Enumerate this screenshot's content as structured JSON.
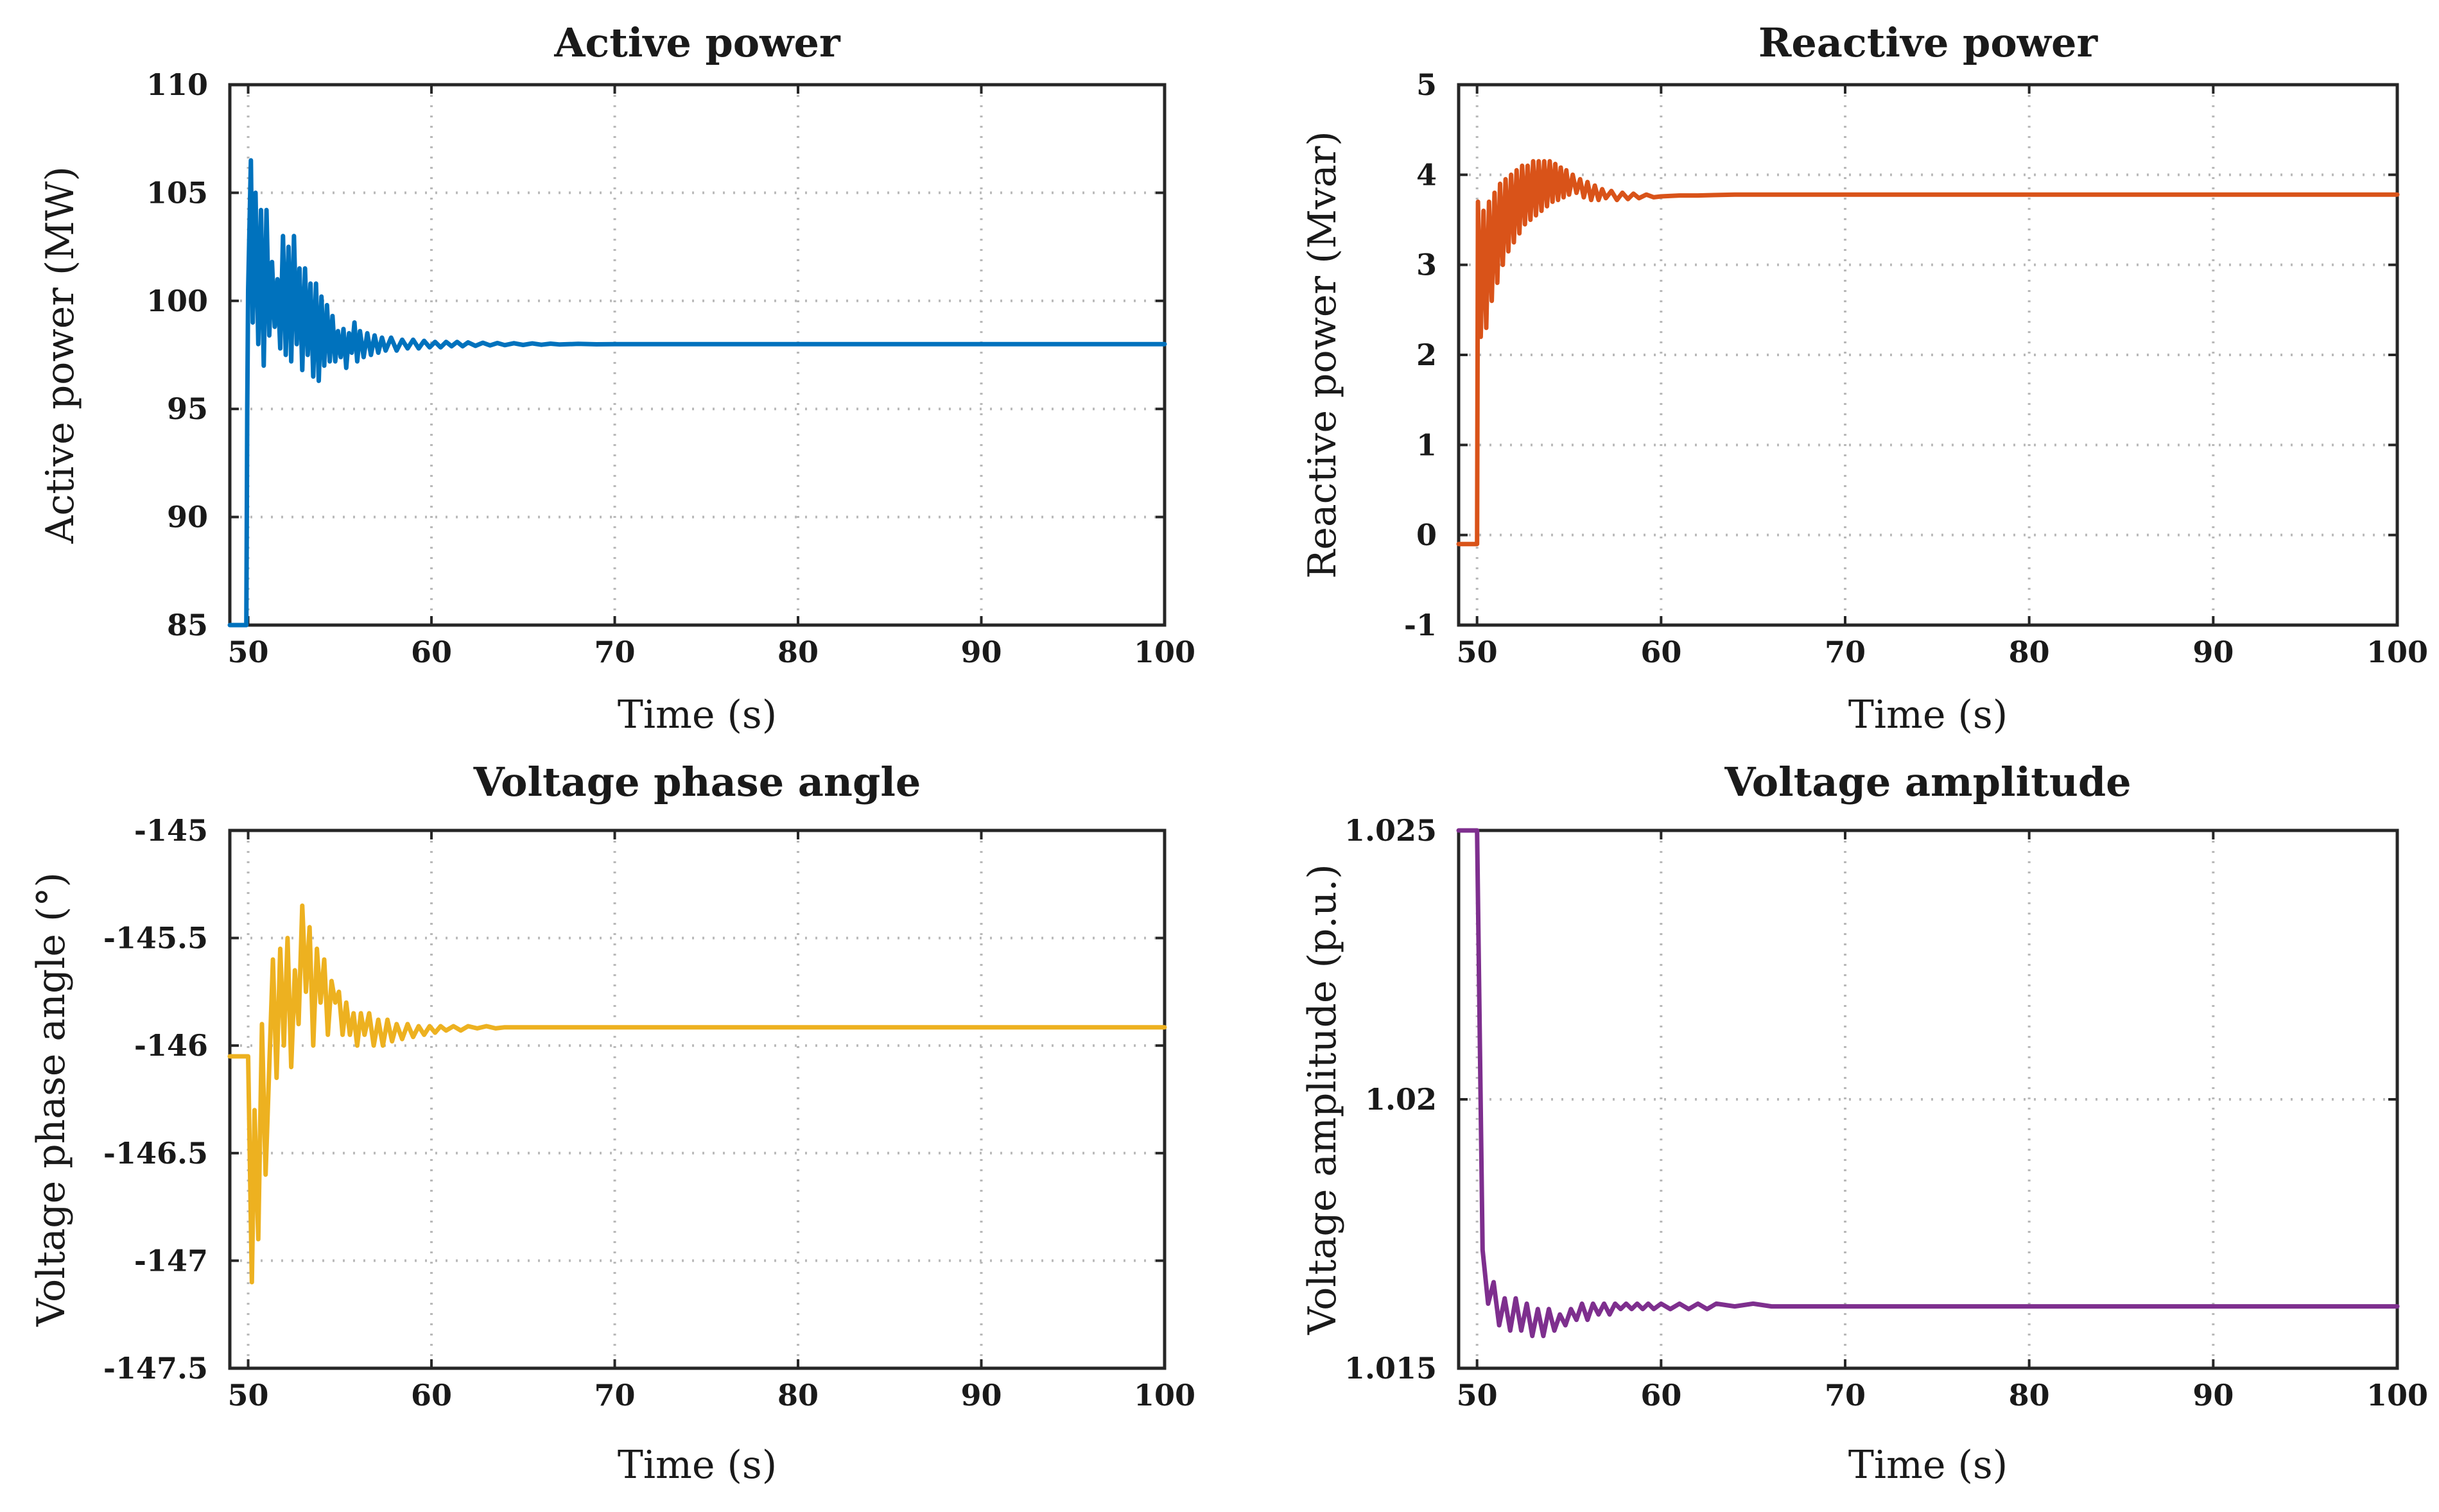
{
  "chart_data": [
    {
      "type": "line",
      "title": "Active power",
      "xlabel": "Time (s)",
      "ylabel": "Active power (MW)",
      "xlim": [
        49,
        100
      ],
      "ylim": [
        85,
        110
      ],
      "xticks": [
        50,
        60,
        70,
        80,
        90,
        100
      ],
      "yticks": [
        85,
        90,
        95,
        100,
        105,
        110
      ],
      "xtick_labels": [
        "50",
        "60",
        "70",
        "80",
        "90",
        "100"
      ],
      "ytick_labels": [
        "85",
        "90",
        "95",
        "100",
        "105",
        "110"
      ],
      "grid": true,
      "series": [
        {
          "name": "Active power",
          "color": "#0072BD",
          "x": [
            49,
            49.9,
            49.95,
            50.0,
            50.15,
            50.25,
            50.4,
            50.55,
            50.7,
            50.85,
            51.0,
            51.15,
            51.3,
            51.45,
            51.6,
            51.75,
            51.9,
            52.05,
            52.2,
            52.35,
            52.5,
            52.65,
            52.8,
            52.95,
            53.1,
            53.25,
            53.4,
            53.55,
            53.7,
            53.85,
            54.0,
            54.15,
            54.3,
            54.45,
            54.6,
            54.75,
            54.9,
            55.05,
            55.2,
            55.35,
            55.5,
            55.65,
            55.8,
            55.95,
            56.1,
            56.3,
            56.5,
            56.7,
            56.9,
            57.1,
            57.3,
            57.5,
            57.8,
            58.1,
            58.4,
            58.7,
            59.0,
            59.3,
            59.6,
            59.9,
            60.2,
            60.5,
            60.8,
            61.1,
            61.4,
            61.7,
            62.0,
            62.4,
            62.8,
            63.2,
            63.6,
            64.0,
            64.5,
            65.0,
            65.5,
            66.0,
            66.5,
            67.0,
            68.0,
            69.0,
            70.0,
            72.0,
            75.0,
            80.0,
            90.0,
            100.0
          ],
          "y": [
            85,
            85,
            95,
            100.5,
            106.5,
            99.0,
            105.0,
            98.0,
            104.2,
            97.0,
            104.2,
            98.4,
            101.8,
            98.8,
            101.0,
            97.8,
            103.0,
            97.5,
            102.5,
            97.2,
            103.0,
            98.0,
            101.5,
            96.8,
            101.5,
            97.5,
            100.8,
            96.5,
            100.8,
            96.3,
            100.2,
            97.0,
            99.8,
            97.2,
            99.3,
            97.2,
            98.6,
            97.4,
            98.7,
            96.9,
            98.5,
            97.6,
            99.0,
            97.2,
            98.6,
            97.4,
            98.5,
            97.5,
            98.4,
            97.6,
            98.3,
            97.7,
            98.3,
            97.7,
            98.2,
            97.8,
            98.2,
            97.8,
            98.15,
            97.85,
            98.1,
            97.85,
            98.1,
            97.9,
            98.1,
            97.9,
            98.08,
            97.92,
            98.06,
            97.94,
            98.05,
            97.95,
            98.04,
            97.96,
            98.03,
            97.97,
            98.02,
            97.98,
            98.01,
            97.99,
            98.0,
            98.0,
            98.0,
            98.0,
            98.0,
            98.0
          ]
        }
      ]
    },
    {
      "type": "line",
      "title": "Reactive power",
      "xlabel": "Time (s)",
      "ylabel": "Reactive power (Mvar)",
      "xlim": [
        49,
        100
      ],
      "ylim": [
        -1,
        5
      ],
      "xticks": [
        50,
        60,
        70,
        80,
        90,
        100
      ],
      "yticks": [
        -1,
        0,
        1,
        2,
        3,
        4,
        5
      ],
      "xtick_labels": [
        "50",
        "60",
        "70",
        "80",
        "90",
        "100"
      ],
      "ytick_labels": [
        "-1",
        "0",
        "1",
        "2",
        "3",
        "4",
        "5"
      ],
      "grid": true,
      "series": [
        {
          "name": "Reactive power",
          "color": "#D95319",
          "x": [
            49,
            49.9,
            50.0,
            50.05,
            50.2,
            50.35,
            50.5,
            50.65,
            50.8,
            50.95,
            51.1,
            51.25,
            51.4,
            51.55,
            51.7,
            51.85,
            52.0,
            52.15,
            52.3,
            52.45,
            52.6,
            52.75,
            52.9,
            53.05,
            53.2,
            53.35,
            53.5,
            53.65,
            53.8,
            53.95,
            54.1,
            54.25,
            54.4,
            54.55,
            54.7,
            54.85,
            55.0,
            55.2,
            55.4,
            55.6,
            55.8,
            56.0,
            56.2,
            56.4,
            56.6,
            56.8,
            57.0,
            57.3,
            57.6,
            57.9,
            58.2,
            58.5,
            58.8,
            59.2,
            59.6,
            60.0,
            61.0,
            62.0,
            64.0,
            66.0,
            70.0,
            80.0,
            90.0,
            100.0
          ],
          "y": [
            -0.1,
            -0.1,
            -0.1,
            3.7,
            2.2,
            3.6,
            2.3,
            3.7,
            2.6,
            3.8,
            2.8,
            3.9,
            3.0,
            3.95,
            3.15,
            4.0,
            3.25,
            4.05,
            3.35,
            4.1,
            3.45,
            4.1,
            3.5,
            4.15,
            3.55,
            4.15,
            3.6,
            4.15,
            3.65,
            4.15,
            3.7,
            4.12,
            3.72,
            4.08,
            3.75,
            4.05,
            3.78,
            4.0,
            3.8,
            3.95,
            3.75,
            3.92,
            3.72,
            3.88,
            3.72,
            3.84,
            3.74,
            3.82,
            3.72,
            3.8,
            3.73,
            3.79,
            3.74,
            3.78,
            3.75,
            3.76,
            3.77,
            3.77,
            3.78,
            3.78,
            3.78,
            3.78,
            3.78,
            3.78
          ]
        }
      ]
    },
    {
      "type": "line",
      "title": "Voltage phase angle",
      "xlabel": "Time (s)",
      "ylabel": "Voltage phase angle (°)",
      "xlim": [
        49,
        100
      ],
      "ylim": [
        -147.5,
        -145
      ],
      "xticks": [
        50,
        60,
        70,
        80,
        90,
        100
      ],
      "yticks": [
        -147.5,
        -147,
        -146.5,
        -146,
        -145.5,
        -145
      ],
      "xtick_labels": [
        "50",
        "60",
        "70",
        "80",
        "90",
        "100"
      ],
      "ytick_labels": [
        "-147.5",
        "-147",
        "-146.5",
        "-146",
        "-145.5",
        "-145"
      ],
      "grid": true,
      "series": [
        {
          "name": "Voltage phase angle",
          "color": "#EDB120",
          "x": [
            49,
            49.9,
            50.0,
            50.2,
            50.35,
            50.55,
            50.75,
            50.95,
            51.15,
            51.35,
            51.55,
            51.75,
            51.95,
            52.15,
            52.35,
            52.55,
            52.75,
            52.95,
            53.15,
            53.35,
            53.55,
            53.75,
            53.95,
            54.15,
            54.35,
            54.55,
            54.75,
            54.95,
            55.15,
            55.35,
            55.55,
            55.75,
            55.95,
            56.15,
            56.35,
            56.6,
            56.85,
            57.1,
            57.35,
            57.6,
            57.85,
            58.1,
            58.4,
            58.7,
            59.0,
            59.3,
            59.6,
            59.9,
            60.2,
            60.5,
            60.8,
            61.2,
            61.6,
            62.0,
            62.5,
            63.0,
            63.5,
            64.0,
            65.0,
            66.0,
            68.0,
            70.0,
            75.0,
            80.0,
            90.0,
            100.0
          ],
          "y": [
            -146.05,
            -146.05,
            -146.05,
            -147.1,
            -146.3,
            -146.9,
            -145.9,
            -146.6,
            -146.1,
            -145.6,
            -146.15,
            -145.55,
            -146.0,
            -145.5,
            -146.1,
            -145.65,
            -145.9,
            -145.35,
            -145.75,
            -145.45,
            -146.0,
            -145.55,
            -145.8,
            -145.6,
            -145.95,
            -145.7,
            -145.8,
            -145.75,
            -145.95,
            -145.8,
            -145.95,
            -145.85,
            -146.0,
            -145.85,
            -145.95,
            -145.85,
            -146.0,
            -145.88,
            -146.0,
            -145.88,
            -145.98,
            -145.9,
            -145.97,
            -145.9,
            -145.96,
            -145.91,
            -145.95,
            -145.91,
            -145.94,
            -145.91,
            -145.93,
            -145.91,
            -145.93,
            -145.91,
            -145.92,
            -145.91,
            -145.92,
            -145.915,
            -145.915,
            -145.915,
            -145.915,
            -145.915,
            -145.915,
            -145.915,
            -145.915,
            -145.915
          ]
        }
      ]
    },
    {
      "type": "line",
      "title": "Voltage amplitude",
      "xlabel": "Time (s)",
      "ylabel": "Voltage amplitude (p.u.)",
      "xlim": [
        49,
        100
      ],
      "ylim": [
        1.015,
        1.025
      ],
      "xticks": [
        50,
        60,
        70,
        80,
        90,
        100
      ],
      "yticks": [
        1.015,
        1.02,
        1.025
      ],
      "xtick_labels": [
        "50",
        "60",
        "70",
        "80",
        "90",
        "100"
      ],
      "ytick_labels": [
        "1.015",
        "1.02",
        "1.025"
      ],
      "grid": true,
      "series": [
        {
          "name": "Voltage amplitude",
          "color": "#7E2F8E",
          "x": [
            49,
            49.9,
            50.0,
            50.3,
            50.6,
            50.9,
            51.2,
            51.5,
            51.8,
            52.1,
            52.4,
            52.7,
            53.0,
            53.3,
            53.6,
            53.9,
            54.2,
            54.5,
            54.8,
            55.1,
            55.4,
            55.7,
            56.0,
            56.3,
            56.6,
            56.9,
            57.2,
            57.5,
            57.8,
            58.1,
            58.4,
            58.7,
            59.0,
            59.3,
            59.6,
            60.0,
            60.5,
            61.0,
            61.5,
            62.0,
            62.5,
            63.0,
            64.0,
            65.0,
            66.0,
            68.0,
            70.0,
            75.0,
            80.0,
            90.0,
            100.0
          ],
          "y": [
            1.025,
            1.025,
            1.025,
            1.0172,
            1.0162,
            1.0166,
            1.0158,
            1.0163,
            1.0157,
            1.0163,
            1.0157,
            1.0162,
            1.0156,
            1.0161,
            1.0156,
            1.0161,
            1.0157,
            1.016,
            1.0158,
            1.0161,
            1.0159,
            1.0162,
            1.0159,
            1.0162,
            1.016,
            1.0162,
            1.016,
            1.0162,
            1.0161,
            1.0162,
            1.0161,
            1.0162,
            1.0161,
            1.0162,
            1.0161,
            1.0162,
            1.0161,
            1.0162,
            1.0161,
            1.0162,
            1.0161,
            1.0162,
            1.01615,
            1.0162,
            1.01615,
            1.01615,
            1.01615,
            1.01615,
            1.01615,
            1.01615,
            1.01615
          ]
        }
      ]
    }
  ]
}
